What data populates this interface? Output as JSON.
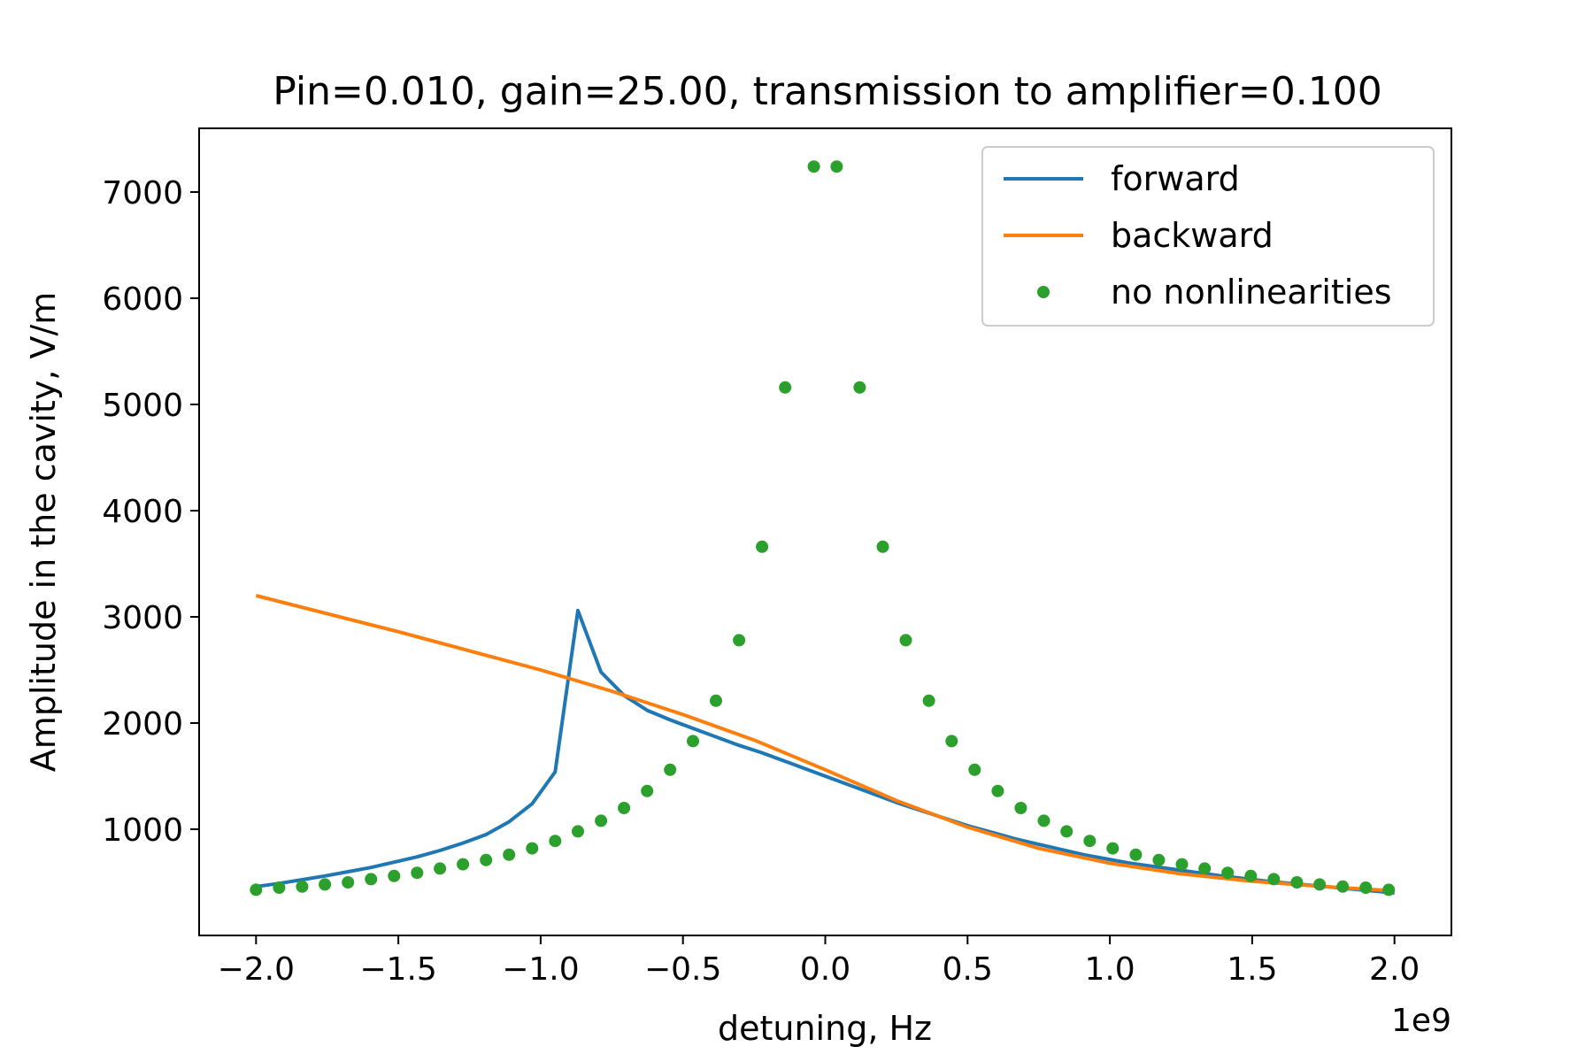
{
  "chart_data": {
    "type": "line",
    "title": "Pin=0.010, gain=25.00, transmission to amplifier=0.100",
    "xlabel": "detuning, Hz",
    "ylabel": "Amplitude in the cavity, V/m",
    "x_offset_label": "1e9",
    "x_scale": 1000000000,
    "xlim": [
      -2.2,
      2.2
    ],
    "ylim": [
      0,
      7600
    ],
    "xticks": [
      -2.0,
      -1.5,
      -1.0,
      -0.5,
      0.0,
      0.5,
      1.0,
      1.5,
      2.0
    ],
    "xtick_labels": [
      "−2.0",
      "−1.5",
      "−1.0",
      "−0.5",
      "0.0",
      "0.5",
      "1.0",
      "1.5",
      "2.0"
    ],
    "yticks": [
      1000,
      2000,
      3000,
      4000,
      5000,
      6000,
      7000
    ],
    "ytick_labels": [
      "1000",
      "2000",
      "3000",
      "4000",
      "5000",
      "6000",
      "7000"
    ],
    "grid": false,
    "legend_position": "top-right",
    "series": [
      {
        "name": "forward",
        "style": "line",
        "color": "#1f77b4",
        "x": [
          -2.0,
          -1.919,
          -1.838,
          -1.758,
          -1.677,
          -1.596,
          -1.515,
          -1.434,
          -1.354,
          -1.273,
          -1.192,
          -1.111,
          -1.03,
          -0.949,
          -0.869,
          -0.788,
          -0.707,
          -0.626,
          -0.545,
          -0.465,
          -0.384,
          -0.303,
          -0.222,
          -0.141,
          -0.061,
          0.02,
          0.101,
          0.182,
          0.263,
          0.343,
          0.424,
          0.505,
          0.586,
          0.667,
          0.747,
          0.828,
          0.909,
          0.99,
          1.071,
          1.152,
          1.232,
          1.313,
          1.394,
          1.475,
          1.556,
          1.636,
          1.717,
          1.798,
          1.879,
          1.96,
          2.0
        ],
        "y": [
          460,
          490,
          525,
          560,
          600,
          640,
          690,
          740,
          800,
          870,
          950,
          1070,
          1240,
          1540,
          3060,
          2480,
          2260,
          2120,
          2030,
          1950,
          1870,
          1790,
          1720,
          1640,
          1560,
          1480,
          1400,
          1320,
          1240,
          1170,
          1100,
          1030,
          970,
          910,
          860,
          810,
          760,
          720,
          680,
          650,
          620,
          590,
          560,
          535,
          510,
          490,
          470,
          450,
          430,
          410,
          400
        ]
      },
      {
        "name": "backward",
        "style": "line",
        "color": "#ff7f0e",
        "x": [
          -2.0,
          -1.75,
          -1.5,
          -1.25,
          -1.0,
          -0.75,
          -0.5,
          -0.25,
          0.0,
          0.25,
          0.5,
          0.75,
          1.0,
          1.25,
          1.5,
          1.75,
          2.0
        ],
        "y": [
          3200,
          3030,
          2860,
          2680,
          2500,
          2300,
          2080,
          1840,
          1560,
          1270,
          1020,
          820,
          680,
          580,
          510,
          460,
          420
        ]
      },
      {
        "name": "no nonlinearities",
        "style": "dots",
        "color": "#2ca02c",
        "x": [
          -2.0,
          -1.919,
          -1.838,
          -1.758,
          -1.677,
          -1.596,
          -1.515,
          -1.434,
          -1.354,
          -1.273,
          -1.192,
          -1.111,
          -1.03,
          -0.949,
          -0.869,
          -0.788,
          -0.707,
          -0.626,
          -0.545,
          -0.465,
          -0.384,
          -0.303,
          -0.222,
          -0.141,
          -0.04,
          0.04,
          0.121,
          0.202,
          0.283,
          0.364,
          0.444,
          0.525,
          0.606,
          0.687,
          0.768,
          0.848,
          0.929,
          1.01,
          1.091,
          1.172,
          1.253,
          1.333,
          1.414,
          1.495,
          1.576,
          1.657,
          1.737,
          1.818,
          1.899,
          1.98
        ],
        "y": [
          430,
          450,
          460,
          480,
          500,
          530,
          560,
          590,
          630,
          670,
          710,
          760,
          820,
          890,
          980,
          1080,
          1200,
          1360,
          1560,
          1830,
          2210,
          2780,
          3660,
          5160,
          7240,
          7240,
          5160,
          3660,
          2780,
          2210,
          1830,
          1560,
          1360,
          1200,
          1080,
          980,
          890,
          820,
          760,
          710,
          670,
          630,
          590,
          560,
          530,
          500,
          480,
          460,
          450,
          430
        ]
      }
    ]
  }
}
